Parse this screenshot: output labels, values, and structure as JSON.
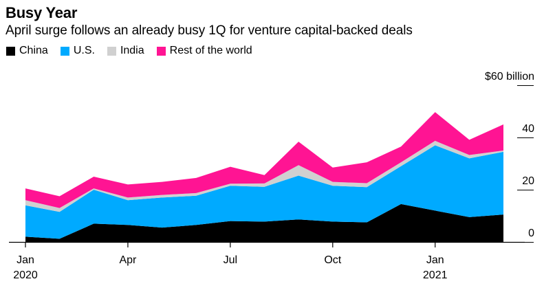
{
  "chart_data": {
    "type": "area",
    "stacked": true,
    "title": "Busy Year",
    "subtitle": "April surge follows an already busy 1Q for venture capital-backed deals",
    "y_unit_label": "$60 billion",
    "ylim": [
      0,
      60
    ],
    "y_ticks": [
      0,
      20,
      40,
      60
    ],
    "y_tick_labels": [
      "0",
      "20",
      "40",
      "$60 billion"
    ],
    "x": [
      "2020-01",
      "2020-02",
      "2020-03",
      "2020-04",
      "2020-05",
      "2020-06",
      "2020-07",
      "2020-08",
      "2020-09",
      "2020-10",
      "2020-11",
      "2020-12",
      "2021-01",
      "2021-02",
      "2021-03"
    ],
    "x_ticks": [
      {
        "index": 0,
        "label": "Jan",
        "year": "2020"
      },
      {
        "index": 3,
        "label": "Apr",
        "year": ""
      },
      {
        "index": 6,
        "label": "Jul",
        "year": ""
      },
      {
        "index": 9,
        "label": "Oct",
        "year": ""
      },
      {
        "index": 12,
        "label": "Jan",
        "year": "2021"
      }
    ],
    "series": [
      {
        "name": "China",
        "color": "#000000",
        "values": [
          2,
          1.2,
          7,
          6.5,
          5.5,
          6.5,
          8,
          7.8,
          8.6,
          7.8,
          7.5,
          14.5,
          12,
          9.5,
          10.5
        ]
      },
      {
        "name": "U.S.",
        "color": "#00aaff",
        "values": [
          12,
          10.3,
          13,
          9.5,
          11.5,
          11.2,
          13.5,
          13.3,
          16.8,
          13.7,
          13.5,
          14.5,
          25,
          22.5,
          24
        ]
      },
      {
        "name": "India",
        "color": "#d0d0d0",
        "values": [
          2,
          1.5,
          0.5,
          1,
          1,
          1,
          0.8,
          1.3,
          4,
          1.5,
          1.5,
          1.5,
          1.7,
          1.3,
          0.5
        ]
      },
      {
        "name": "Rest of the world",
        "color": "#ff1493",
        "values": [
          4.5,
          4.5,
          4.5,
          5,
          5,
          5.8,
          6.5,
          3.2,
          9,
          5.5,
          8,
          6,
          11,
          5.8,
          10
        ]
      }
    ]
  }
}
